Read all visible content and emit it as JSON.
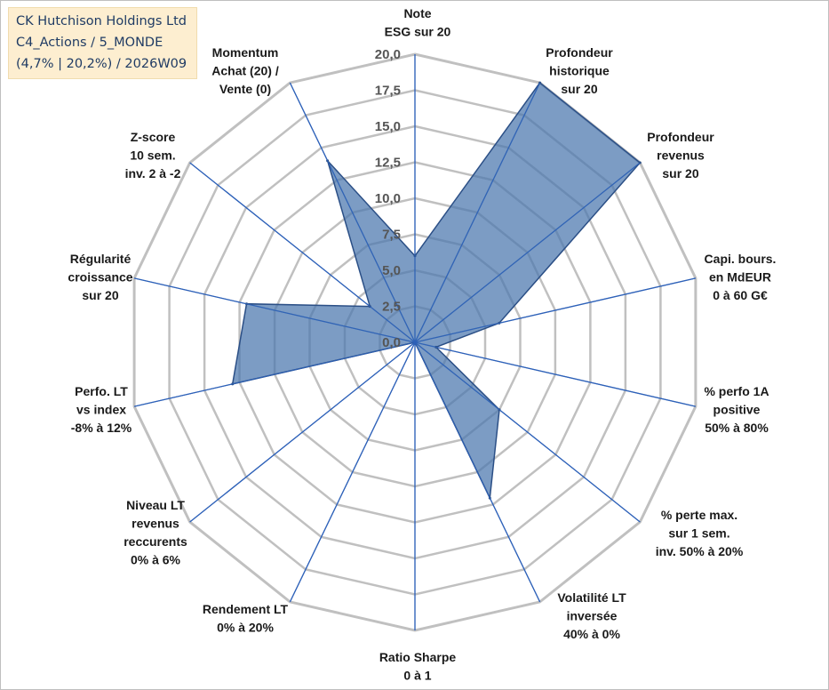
{
  "header": {
    "company": "CK Hutchison Holdings Ltd",
    "category": "C4_Actions / 5_MONDE",
    "stats": "(4,7% | 20,2%) / 2026W09"
  },
  "colors": {
    "fill": "#4a76ad",
    "stroke": "#2b4f86",
    "grid": "#c0c0c0",
    "spoke": "#2e62b8",
    "title_bg": "#fdeed0"
  },
  "chart_data": {
    "type": "radar",
    "title": "",
    "rmin": 0,
    "rmax": 20,
    "ticks": [
      "0,0",
      "2,5",
      "5,0",
      "7,5",
      "10,0",
      "12,5",
      "15,0",
      "17,5",
      "20,0"
    ],
    "axes": [
      {
        "label": [
          "Note",
          "ESG sur 20"
        ],
        "value": 6
      },
      {
        "label": [
          "Profondeur",
          "historique",
          "sur 20"
        ],
        "value": 20
      },
      {
        "label": [
          "Profondeur",
          "revenus",
          "sur 20"
        ],
        "value": 20
      },
      {
        "label": [
          "Capi. bours.",
          "en MdEUR",
          "0 à 60 G€"
        ],
        "value": 6
      },
      {
        "label": [
          "% perfo 1A",
          "positive",
          "50% à 80%"
        ],
        "value": 1.5
      },
      {
        "label": [
          "% perte max.",
          "sur 1 sem.",
          "inv. 50% à 20%"
        ],
        "value": 7.5
      },
      {
        "label": [
          "Volatilité LT",
          "inversée",
          "40% à 0%"
        ],
        "value": 12
      },
      {
        "label": [
          "Ratio Sharpe",
          "0 à 1"
        ],
        "value": 0
      },
      {
        "label": [
          "Rendement LT",
          "0% à 20%"
        ],
        "value": 0
      },
      {
        "label": [
          "Niveau LT",
          "revenus",
          "reccurents",
          "0% à 6%"
        ],
        "value": 0
      },
      {
        "label": [
          "Perfo. LT",
          "vs index",
          "-8% à 12%"
        ],
        "value": 13
      },
      {
        "label": [
          "Régularité",
          "croissance",
          "sur 20"
        ],
        "value": 12
      },
      {
        "label": [
          "Z-score",
          "10 sem.",
          "inv. 2 à -2"
        ],
        "value": 4
      },
      {
        "label": [
          "Momentum",
          "Achat (20) /",
          "Vente (0)"
        ],
        "value": 14
      }
    ]
  }
}
